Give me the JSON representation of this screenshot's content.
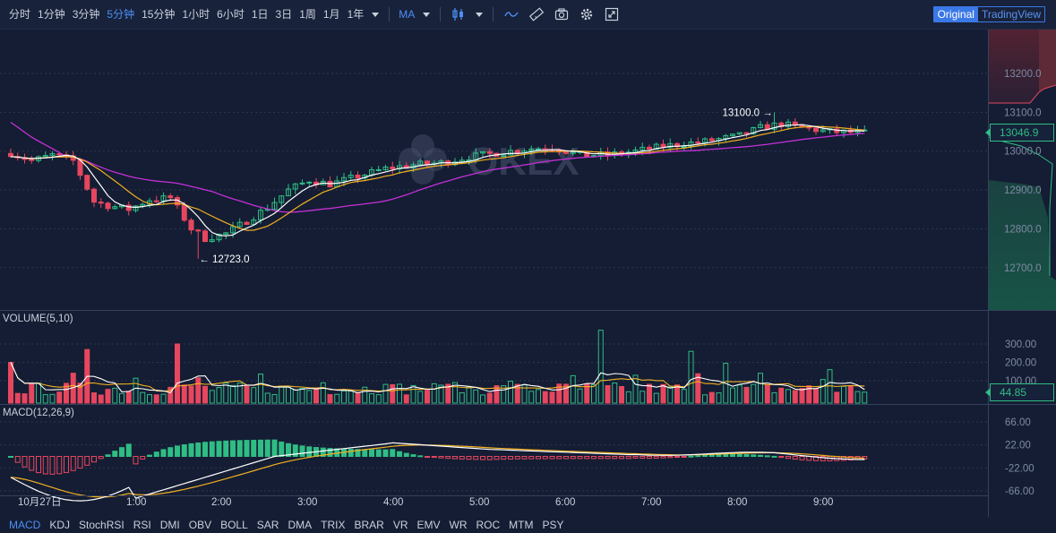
{
  "toolbar": {
    "intervals": [
      "分时",
      "1分钟",
      "3分钟",
      "5分钟",
      "15分钟",
      "1小时",
      "6小时",
      "1日",
      "3日",
      "1周",
      "1月",
      "1年"
    ],
    "active_interval": "5分钟",
    "indicator_label": "MA",
    "view_original": "Original",
    "view_tradingview": "TradingView"
  },
  "main_chart": {
    "price_ticks": [
      "13200.0",
      "13100.0",
      "13000.0",
      "12900.0",
      "12800.0",
      "12700.0"
    ],
    "high_label": "13100.0 →",
    "low_label": "← 12723.0",
    "current_price": "13046.9",
    "watermark": "OKEX"
  },
  "volume_panel": {
    "title": "VOLUME(5,10)",
    "ticks": [
      "300.00",
      "200.00",
      "100.00"
    ],
    "current_value": "44.85"
  },
  "macd_panel": {
    "title": "MACD(12,26,9)",
    "ticks": [
      "66.00",
      "22.00",
      "-22.00",
      "-66.00"
    ]
  },
  "time_axis": {
    "labels": [
      "10月27日",
      "1:00",
      "2:00",
      "3:00",
      "4:00",
      "5:00",
      "6:00",
      "7:00",
      "8:00",
      "9:00"
    ]
  },
  "indicator_tabs": {
    "items": [
      "MACD",
      "KDJ",
      "StochRSI",
      "RSI",
      "DMI",
      "OBV",
      "BOLL",
      "SAR",
      "DMA",
      "TRIX",
      "BRAR",
      "VR",
      "EMV",
      "WR",
      "ROC",
      "MTM",
      "PSY"
    ],
    "active": "MACD"
  },
  "colors": {
    "up": "#2fbd85",
    "down": "#e6475f",
    "ma_fast": "#ffffff",
    "ma_mid": "#f3b021",
    "ma_slow": "#c530d8",
    "accent": "#4d8ff6"
  }
}
